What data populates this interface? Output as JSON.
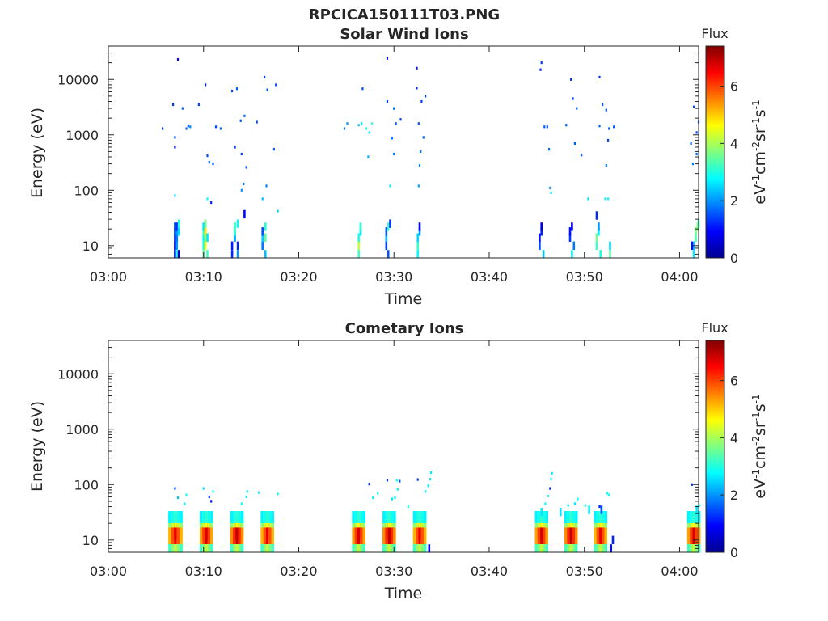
{
  "figure": {
    "title": "RPCICA150111T03.PNG"
  },
  "chart_data": [
    {
      "type": "heatmap",
      "title": "Solar Wind Ions",
      "xlabel": "Time",
      "ylabel": "Energy (eV)",
      "xticks": [
        "03:00",
        "03:10",
        "03:20",
        "03:30",
        "03:40",
        "03:50",
        "04:00"
      ],
      "xlim_minutes": [
        0,
        62
      ],
      "yscale": "log",
      "ylim": [
        6,
        40000
      ],
      "yticks": [
        {
          "value": 10,
          "label": "10"
        },
        {
          "value": 100,
          "label": "100"
        },
        {
          "value": 1000,
          "label": "1000"
        },
        {
          "value": 10000,
          "label": "10000"
        }
      ],
      "colorbar": {
        "title": "Flux",
        "label": "eV-1cm-2sr-1s-1",
        "ticks": [
          "0",
          "2",
          "4",
          "6"
        ],
        "range": [
          0,
          7.4
        ],
        "colormap": "jet"
      },
      "cells_note": "each cell: [time in minutes after 03:00, energy (eV), flux]",
      "cells": [
        [
          7.0,
          7,
          1.0
        ],
        [
          7.0,
          10,
          0.9
        ],
        [
          7.0,
          14,
          1.3
        ],
        [
          7.0,
          18,
          1.5
        ],
        [
          7.0,
          22,
          1.5
        ],
        [
          7.2,
          7,
          3.0
        ],
        [
          7.2,
          10,
          2.1
        ],
        [
          7.2,
          14,
          1.8
        ],
        [
          7.2,
          18,
          2.0
        ],
        [
          7.2,
          22,
          1.2
        ],
        [
          7.4,
          7,
          0.6
        ],
        [
          7.4,
          18,
          2.5
        ],
        [
          7.4,
          25,
          3.0
        ],
        [
          10.0,
          7,
          3.5
        ],
        [
          10.0,
          10,
          3.0
        ],
        [
          10.0,
          14,
          2.8
        ],
        [
          10.0,
          18,
          3.2
        ],
        [
          10.0,
          22,
          2.6
        ],
        [
          10.2,
          10,
          4.5
        ],
        [
          10.2,
          14,
          4.0
        ],
        [
          10.2,
          18,
          4.8
        ],
        [
          10.2,
          25,
          3.6
        ],
        [
          10.4,
          7,
          3.2
        ],
        [
          10.4,
          14,
          2.6
        ],
        [
          13.0,
          7,
          1.2
        ],
        [
          13.0,
          10,
          1.1
        ],
        [
          13.3,
          14,
          2.2
        ],
        [
          13.3,
          18,
          3.0
        ],
        [
          13.3,
          22,
          3.2
        ],
        [
          13.6,
          7,
          2.0
        ],
        [
          13.6,
          10,
          1.2
        ],
        [
          13.6,
          25,
          2.8
        ],
        [
          16.2,
          10,
          1.8
        ],
        [
          16.2,
          14,
          2.4
        ],
        [
          16.2,
          18,
          1.5
        ],
        [
          16.5,
          14,
          3.4
        ],
        [
          16.5,
          22,
          3.0
        ],
        [
          16.5,
          7,
          2.3
        ],
        [
          26.3,
          7,
          3.2
        ],
        [
          26.3,
          10,
          4.2
        ],
        [
          26.3,
          14,
          3.0
        ],
        [
          26.5,
          18,
          2.6
        ],
        [
          26.5,
          22,
          3.1
        ],
        [
          29.2,
          10,
          1.4
        ],
        [
          29.2,
          14,
          2.2
        ],
        [
          29.2,
          18,
          1.6
        ],
        [
          29.4,
          22,
          3.2
        ],
        [
          29.4,
          7,
          1.5
        ],
        [
          29.6,
          25,
          1.3
        ],
        [
          32.5,
          7,
          2.8
        ],
        [
          32.5,
          10,
          3.2
        ],
        [
          32.5,
          14,
          2.5
        ],
        [
          32.7,
          18,
          2.0
        ],
        [
          32.7,
          22,
          0.8
        ],
        [
          45.3,
          10,
          1.5
        ],
        [
          45.3,
          14,
          1.0
        ],
        [
          45.5,
          18,
          1.2
        ],
        [
          45.5,
          22,
          0.8
        ],
        [
          45.7,
          7,
          2.3
        ],
        [
          48.5,
          14,
          1.3
        ],
        [
          48.5,
          18,
          1.0
        ],
        [
          48.7,
          22,
          0.9
        ],
        [
          48.7,
          7,
          2.7
        ],
        [
          48.9,
          10,
          1.8
        ],
        [
          51.3,
          10,
          3.2
        ],
        [
          51.3,
          14,
          3.6
        ],
        [
          51.5,
          18,
          2.7
        ],
        [
          51.5,
          22,
          2.0
        ],
        [
          51.7,
          7,
          3.0
        ],
        [
          52.7,
          7,
          3.4
        ],
        [
          52.7,
          10,
          2.5
        ],
        [
          51.3,
          35,
          1.2
        ],
        [
          61.5,
          7,
          2.6
        ],
        [
          61.5,
          10,
          2.3
        ],
        [
          61.7,
          14,
          3.3
        ],
        [
          61.7,
          18,
          3.6
        ],
        [
          61.9,
          22,
          3.8
        ],
        [
          62.0,
          25,
          3.2
        ],
        [
          61.3,
          10,
          1.0
        ],
        [
          5.7,
          1300,
          1.4
        ],
        [
          6.8,
          3500,
          1.3
        ],
        [
          7.0,
          900,
          1.5
        ],
        [
          7.0,
          600,
          1.0
        ],
        [
          7.3,
          23000,
          1.0
        ],
        [
          7.8,
          3000,
          1.6
        ],
        [
          8.2,
          1300,
          1.7
        ],
        [
          8.4,
          1450,
          1.5
        ],
        [
          8.6,
          1400,
          1.9
        ],
        [
          9.5,
          3500,
          1.4
        ],
        [
          10.2,
          8000,
          1.2
        ],
        [
          10.4,
          420,
          1.5
        ],
        [
          10.6,
          320,
          1.6
        ],
        [
          11.0,
          300,
          1.5
        ],
        [
          11.3,
          1400,
          1.5
        ],
        [
          11.8,
          1300,
          1.7
        ],
        [
          13.0,
          6200,
          1.4
        ],
        [
          13.5,
          6800,
          1.6
        ],
        [
          13.9,
          1800,
          1.6
        ],
        [
          14.3,
          2200,
          1.7
        ],
        [
          13.3,
          600,
          1.4
        ],
        [
          14.0,
          450,
          1.4
        ],
        [
          14.5,
          260,
          1.5
        ],
        [
          14.2,
          130,
          1.7
        ],
        [
          15.6,
          1700,
          1.4
        ],
        [
          16.4,
          11000,
          1.3
        ],
        [
          16.7,
          6500,
          1.5
        ],
        [
          17.6,
          8000,
          1.5
        ],
        [
          17.4,
          550,
          1.6
        ],
        [
          16.6,
          120,
          1.9
        ],
        [
          16.2,
          70,
          2.3
        ],
        [
          7.0,
          80,
          2.6
        ],
        [
          10.4,
          70,
          2.8
        ],
        [
          14.0,
          100,
          2.0
        ],
        [
          17.8,
          42,
          2.5
        ],
        [
          14.3,
          37,
          1.0
        ],
        [
          10.8,
          60,
          1.2
        ],
        [
          24.8,
          1300,
          1.8
        ],
        [
          25.1,
          1600,
          2.0
        ],
        [
          26.3,
          1500,
          2.4
        ],
        [
          26.6,
          1600,
          2.6
        ],
        [
          27.1,
          1300,
          3.0
        ],
        [
          27.4,
          1100,
          2.8
        ],
        [
          27.7,
          1600,
          3.2
        ],
        [
          27.3,
          400,
          2.2
        ],
        [
          26.7,
          6800,
          1.5
        ],
        [
          29.3,
          24000,
          1.0
        ],
        [
          29.3,
          4000,
          1.4
        ],
        [
          30.0,
          3000,
          1.6
        ],
        [
          29.8,
          870,
          1.8
        ],
        [
          30.2,
          1600,
          1.5
        ],
        [
          30.0,
          450,
          1.8
        ],
        [
          29.6,
          120,
          2.7
        ],
        [
          30.7,
          1900,
          1.4
        ],
        [
          32.4,
          16000,
          1.0
        ],
        [
          32.4,
          7000,
          1.3
        ],
        [
          32.6,
          1600,
          1.5
        ],
        [
          32.9,
          4000,
          1.4
        ],
        [
          33.3,
          5000,
          1.4
        ],
        [
          33.1,
          900,
          1.6
        ],
        [
          32.8,
          500,
          1.7
        ],
        [
          32.7,
          280,
          1.8
        ],
        [
          32.6,
          120,
          2.1
        ],
        [
          45.5,
          20000,
          1.4
        ],
        [
          45.4,
          15000,
          1.2
        ],
        [
          45.8,
          1400,
          1.6
        ],
        [
          46.1,
          1400,
          1.5
        ],
        [
          46.3,
          550,
          1.7
        ],
        [
          46.4,
          110,
          2.0
        ],
        [
          46.5,
          90,
          2.5
        ],
        [
          48.1,
          1500,
          1.6
        ],
        [
          48.6,
          10000,
          1.2
        ],
        [
          48.8,
          4500,
          1.4
        ],
        [
          49.2,
          3000,
          1.6
        ],
        [
          49.0,
          700,
          1.6
        ],
        [
          49.7,
          430,
          1.6
        ],
        [
          51.6,
          11000,
          1.3
        ],
        [
          51.6,
          1450,
          1.6
        ],
        [
          51.9,
          3500,
          1.5
        ],
        [
          52.3,
          2800,
          1.5
        ],
        [
          52.6,
          1300,
          1.5
        ],
        [
          53.1,
          1400,
          1.6
        ],
        [
          52.5,
          800,
          1.5
        ],
        [
          52.3,
          280,
          1.8
        ],
        [
          52.2,
          70,
          2.7
        ],
        [
          52.5,
          70,
          2.8
        ],
        [
          50.4,
          70,
          2.6
        ],
        [
          61.5,
          3200,
          1.4
        ],
        [
          61.8,
          1100,
          1.5
        ],
        [
          61.8,
          450,
          1.7
        ],
        [
          62.0,
          1700,
          1.6
        ],
        [
          61.2,
          700,
          1.6
        ],
        [
          61.4,
          300,
          1.8
        ]
      ]
    },
    {
      "type": "heatmap",
      "title": "Cometary Ions",
      "xlabel": "Time",
      "ylabel": "Energy (eV)",
      "xticks": [
        "03:00",
        "03:10",
        "03:20",
        "03:30",
        "03:40",
        "03:50",
        "04:00"
      ],
      "xlim_minutes": [
        0,
        62
      ],
      "yscale": "log",
      "ylim": [
        6,
        40000
      ],
      "yticks": [
        {
          "value": 10,
          "label": "10"
        },
        {
          "value": 100,
          "label": "100"
        },
        {
          "value": 1000,
          "label": "1000"
        },
        {
          "value": 10000,
          "label": "10000"
        }
      ],
      "colorbar": {
        "title": "Flux",
        "label": "eV-1cm-2sr-1s-1",
        "ticks": [
          "0",
          "2",
          "4",
          "6"
        ],
        "range": [
          0,
          7.4
        ],
        "colormap": "jet"
      },
      "clusters_note": "burst clusters: [start minute, end minute]",
      "clusters": [
        [
          6.3,
          7.8
        ],
        [
          9.6,
          11.0
        ],
        [
          12.8,
          14.2
        ],
        [
          16.0,
          17.4
        ],
        [
          25.6,
          27.0
        ],
        [
          28.8,
          30.2
        ],
        [
          32.0,
          33.4
        ],
        [
          44.8,
          46.2
        ],
        [
          47.9,
          49.3
        ],
        [
          51.0,
          52.4
        ],
        [
          60.8,
          62.2
        ]
      ],
      "cells_note": "each cell: [time in minutes after 03:00, energy (eV), flux]",
      "cells": [
        [
          7.0,
          85,
          1.5
        ],
        [
          7.3,
          58,
          2.3
        ],
        [
          8.0,
          45,
          2.7
        ],
        [
          8.2,
          65,
          2.9
        ],
        [
          10.0,
          85,
          2.6
        ],
        [
          10.6,
          60,
          1.3
        ],
        [
          10.8,
          50,
          1.0
        ],
        [
          11.0,
          75,
          2.9
        ],
        [
          14.0,
          45,
          2.8
        ],
        [
          14.5,
          60,
          2.6
        ],
        [
          14.6,
          75,
          2.7
        ],
        [
          15.8,
          72,
          2.7
        ],
        [
          17.8,
          68,
          2.9
        ],
        [
          27.4,
          102,
          1.3
        ],
        [
          27.8,
          58,
          2.6
        ],
        [
          28.3,
          70,
          2.8
        ],
        [
          29.3,
          120,
          1.4
        ],
        [
          29.8,
          55,
          2.6
        ],
        [
          30.1,
          58,
          2.6
        ],
        [
          30.4,
          82,
          2.8
        ],
        [
          30.6,
          115,
          1.5
        ],
        [
          30.3,
          120,
          2.8
        ],
        [
          31.5,
          40,
          2.9
        ],
        [
          32.5,
          123,
          1.4
        ],
        [
          33.3,
          75,
          2.8
        ],
        [
          33.6,
          95,
          2.7
        ],
        [
          33.8,
          125,
          2.6
        ],
        [
          33.9,
          165,
          2.6
        ],
        [
          33.7,
          7,
          1.0
        ],
        [
          45.5,
          32,
          2.6
        ],
        [
          45.9,
          45,
          2.8
        ],
        [
          46.2,
          62,
          3.0
        ],
        [
          46.4,
          85,
          1.2
        ],
        [
          46.5,
          125,
          2.8
        ],
        [
          46.6,
          160,
          2.6
        ],
        [
          47.5,
          32,
          2.6
        ],
        [
          48.3,
          42,
          2.7
        ],
        [
          49.0,
          45,
          2.6
        ],
        [
          49.3,
          55,
          2.8
        ],
        [
          50.1,
          42,
          2.8
        ],
        [
          50.5,
          35,
          2.7
        ],
        [
          51.6,
          40,
          1.2
        ],
        [
          51.8,
          35,
          1.5
        ],
        [
          52.4,
          70,
          2.8
        ],
        [
          52.6,
          65,
          2.7
        ],
        [
          52.8,
          7,
          1.0
        ],
        [
          53.0,
          10,
          1.2
        ],
        [
          61.3,
          100,
          1.2
        ],
        [
          61.8,
          35,
          2.6
        ],
        [
          62.1,
          42,
          2.8
        ]
      ]
    }
  ]
}
